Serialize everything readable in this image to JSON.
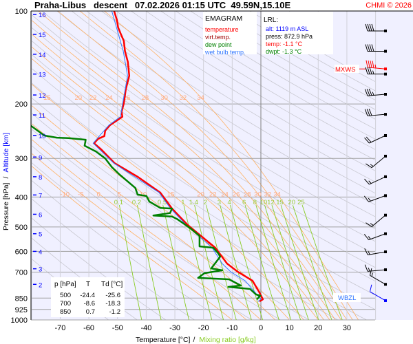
{
  "header": {
    "title": "Praha-Libus   descent   07.02.2026 01:15 UTC  49.59N,15.10E",
    "copyright": "CHMI © 2026"
  },
  "legend": {
    "heading": "EMAGRAM",
    "items": [
      {
        "label": "temperature",
        "color": "#ff0000"
      },
      {
        "label": "virt.temp.",
        "color": "#a00000"
      },
      {
        "label": "dew point",
        "color": "#008000"
      },
      {
        "label": "wet bulb temp.",
        "color": "#3377ff"
      }
    ]
  },
  "lrl": {
    "heading": "LRL:",
    "alt": "alt: 1119 m ASL",
    "press": "press: 872.9 hPa",
    "temp": "temp: -1.1 °C",
    "dwpt": "dwpt: -1.3 °C"
  },
  "table": {
    "headers": [
      "p [hPa]",
      "T",
      "Td [°C]"
    ],
    "rows": [
      [
        "500",
        "-24.4",
        "-25.6"
      ],
      [
        "700",
        "-8.6",
        "-18.3"
      ],
      [
        "850",
        "0.7",
        "-1.2"
      ]
    ]
  },
  "markers": {
    "mxws": "MXWS",
    "wbzl": "WBZL",
    "mxws_p": 154,
    "wbzl_p": 866
  },
  "chart_data": {
    "type": "line",
    "title": "Praha-Libus   descent   07.02.2026 01:15 UTC  49.59N,15.10E",
    "xlabel": "Temperature [°C]",
    "xlabel2": "Mixing ratio [g/kg]",
    "ylabel": "Pressure [hPa]",
    "ylabel2": "Altitude [km]",
    "xlim": [
      -80,
      40
    ],
    "ylim": [
      1000,
      100
    ],
    "yscale": "log",
    "grid": true,
    "x_ticks": [
      -70,
      -60,
      -50,
      -40,
      -30,
      -20,
      -10,
      0,
      10,
      20,
      30
    ],
    "p_ticks": [
      100,
      200,
      300,
      400,
      500,
      600,
      700,
      850,
      925,
      1000
    ],
    "altitude_ticks": [
      {
        "km": 16,
        "p": 102.6
      },
      {
        "km": 15,
        "p": 119
      },
      {
        "km": 14,
        "p": 138
      },
      {
        "km": 13,
        "p": 160
      },
      {
        "km": 12,
        "p": 187
      },
      {
        "km": 11,
        "p": 217
      },
      {
        "km": 10,
        "p": 253
      },
      {
        "km": 9,
        "p": 297
      },
      {
        "km": 8,
        "p": 344
      },
      {
        "km": 7,
        "p": 394
      },
      {
        "km": 6,
        "p": 455
      },
      {
        "km": 5,
        "p": 526
      },
      {
        "km": 4,
        "p": 600
      },
      {
        "km": 3,
        "p": 683
      },
      {
        "km": 2,
        "p": 767
      }
    ],
    "moist_adiabat_labels": {
      "upper": {
        "p": 190,
        "values": [
          15,
          20,
          22,
          24,
          26,
          28,
          30,
          32,
          34
        ]
      },
      "lower": {
        "p": 390,
        "values": [
          -10,
          -5,
          0,
          5,
          10,
          15,
          20,
          22,
          24,
          26,
          28,
          30,
          32,
          34
        ]
      }
    },
    "mixing_ratio_labels": {
      "p": 414,
      "values": [
        0.1,
        0.2,
        0.5,
        1,
        1.4,
        2,
        3,
        4,
        6,
        8,
        10,
        12,
        15,
        20,
        25
      ]
    },
    "colors": {
      "background": "#f0f0ff",
      "dry_adiabat": "#c8c8d0",
      "moist_adiabat": "#ffb060",
      "mixing_ratio": "#88cc22",
      "grid": "#a0a0a0"
    },
    "series": [
      {
        "name": "temperature",
        "color": "#ff0000",
        "points": [
          [
            100,
            -51.2
          ],
          [
            107,
            -50.2
          ],
          [
            113,
            -49.8
          ],
          [
            119,
            -48.8
          ],
          [
            125,
            -47.8
          ],
          [
            135,
            -47.4
          ],
          [
            146,
            -46.4
          ],
          [
            162,
            -45.9
          ],
          [
            179,
            -47.1
          ],
          [
            199,
            -47.8
          ],
          [
            212,
            -48.6
          ],
          [
            220,
            -48.3
          ],
          [
            234,
            -52.6
          ],
          [
            244,
            -54.3
          ],
          [
            254,
            -54.6
          ],
          [
            259,
            -56.7
          ],
          [
            268,
            -58.2
          ],
          [
            280,
            -55.8
          ],
          [
            311,
            -51.0
          ],
          [
            344,
            -43.0
          ],
          [
            387,
            -35.1
          ],
          [
            436,
            -31.0
          ],
          [
            493,
            -25.5
          ],
          [
            584,
            -15.9
          ],
          [
            657,
            -11.8
          ],
          [
            699,
            -8.0
          ],
          [
            747,
            -2.9
          ],
          [
            815,
            -0.5
          ],
          [
            858,
            0.7
          ],
          [
            871,
            -0.5
          ]
        ]
      },
      {
        "name": "wet bulb temp.",
        "color": "#3377ff",
        "points": [
          [
            100,
            -52
          ],
          [
            135,
            -48
          ],
          [
            162,
            -46.5
          ],
          [
            199,
            -48.2
          ],
          [
            220,
            -49
          ],
          [
            234,
            -53
          ],
          [
            268,
            -58.5
          ],
          [
            311,
            -51.3
          ],
          [
            387,
            -35.5
          ],
          [
            436,
            -31.5
          ],
          [
            493,
            -26
          ],
          [
            584,
            -17
          ],
          [
            657,
            -13.5
          ],
          [
            699,
            -10.5
          ],
          [
            747,
            -5.5
          ],
          [
            815,
            -2
          ],
          [
            858,
            0
          ],
          [
            871,
            -1
          ]
        ]
      },
      {
        "name": "dew point",
        "color": "#008000",
        "points": [
          [
            235,
            -80.3
          ],
          [
            253,
            -75.5
          ],
          [
            257,
            -71.2
          ],
          [
            258,
            -67.1
          ],
          [
            261,
            -61.1
          ],
          [
            273,
            -61.5
          ],
          [
            285,
            -57.5
          ],
          [
            300,
            -54.3
          ],
          [
            320,
            -52.0
          ],
          [
            337,
            -49.5
          ],
          [
            374,
            -43.8
          ],
          [
            393,
            -43.0
          ],
          [
            397,
            -39.9
          ],
          [
            414,
            -38.9
          ],
          [
            434,
            -35.1
          ],
          [
            436,
            -31.0
          ],
          [
            451,
            -31.7
          ],
          [
            459,
            -37.5
          ],
          [
            463,
            -31.0
          ],
          [
            471,
            -29.3
          ],
          [
            488,
            -26.9
          ],
          [
            506,
            -24.5
          ],
          [
            535,
            -21.4
          ],
          [
            578,
            -21.4
          ],
          [
            584,
            -16.6
          ],
          [
            608,
            -14.9
          ],
          [
            624,
            -14.2
          ],
          [
            681,
            -17.3
          ],
          [
            691,
            -13.5
          ],
          [
            706,
            -19.7
          ],
          [
            731,
            -21.9
          ],
          [
            739,
            -11.1
          ],
          [
            774,
            -7.0
          ],
          [
            782,
            -11.3
          ],
          [
            794,
            -3.8
          ],
          [
            827,
            -1.7
          ],
          [
            835,
            -0.2
          ],
          [
            858,
            -1.4
          ]
        ]
      }
    ],
    "wind": [
      {
        "p": 116,
        "dir": 270,
        "kt": 40
      },
      {
        "p": 135,
        "dir": 270,
        "kt": 40
      },
      {
        "p": 154,
        "dir": 275,
        "kt": 45,
        "mxws": true
      },
      {
        "p": 160,
        "dir": 270,
        "kt": 35
      },
      {
        "p": 186,
        "dir": 265,
        "kt": 35
      },
      {
        "p": 216,
        "dir": 265,
        "kt": 30
      },
      {
        "p": 253,
        "dir": 245,
        "kt": 20
      },
      {
        "p": 295,
        "dir": 230,
        "kt": 15
      },
      {
        "p": 344,
        "dir": 245,
        "kt": 15
      },
      {
        "p": 396,
        "dir": 250,
        "kt": 15
      },
      {
        "p": 458,
        "dir": 230,
        "kt": 15
      },
      {
        "p": 526,
        "dir": 250,
        "kt": 15
      },
      {
        "p": 602,
        "dir": 260,
        "kt": 15
      },
      {
        "p": 688,
        "dir": 265,
        "kt": 15
      },
      {
        "p": 767,
        "dir": 300,
        "kt": 15
      },
      {
        "p": 866,
        "dir": 300,
        "kt": 10,
        "wbzl": true
      }
    ]
  }
}
